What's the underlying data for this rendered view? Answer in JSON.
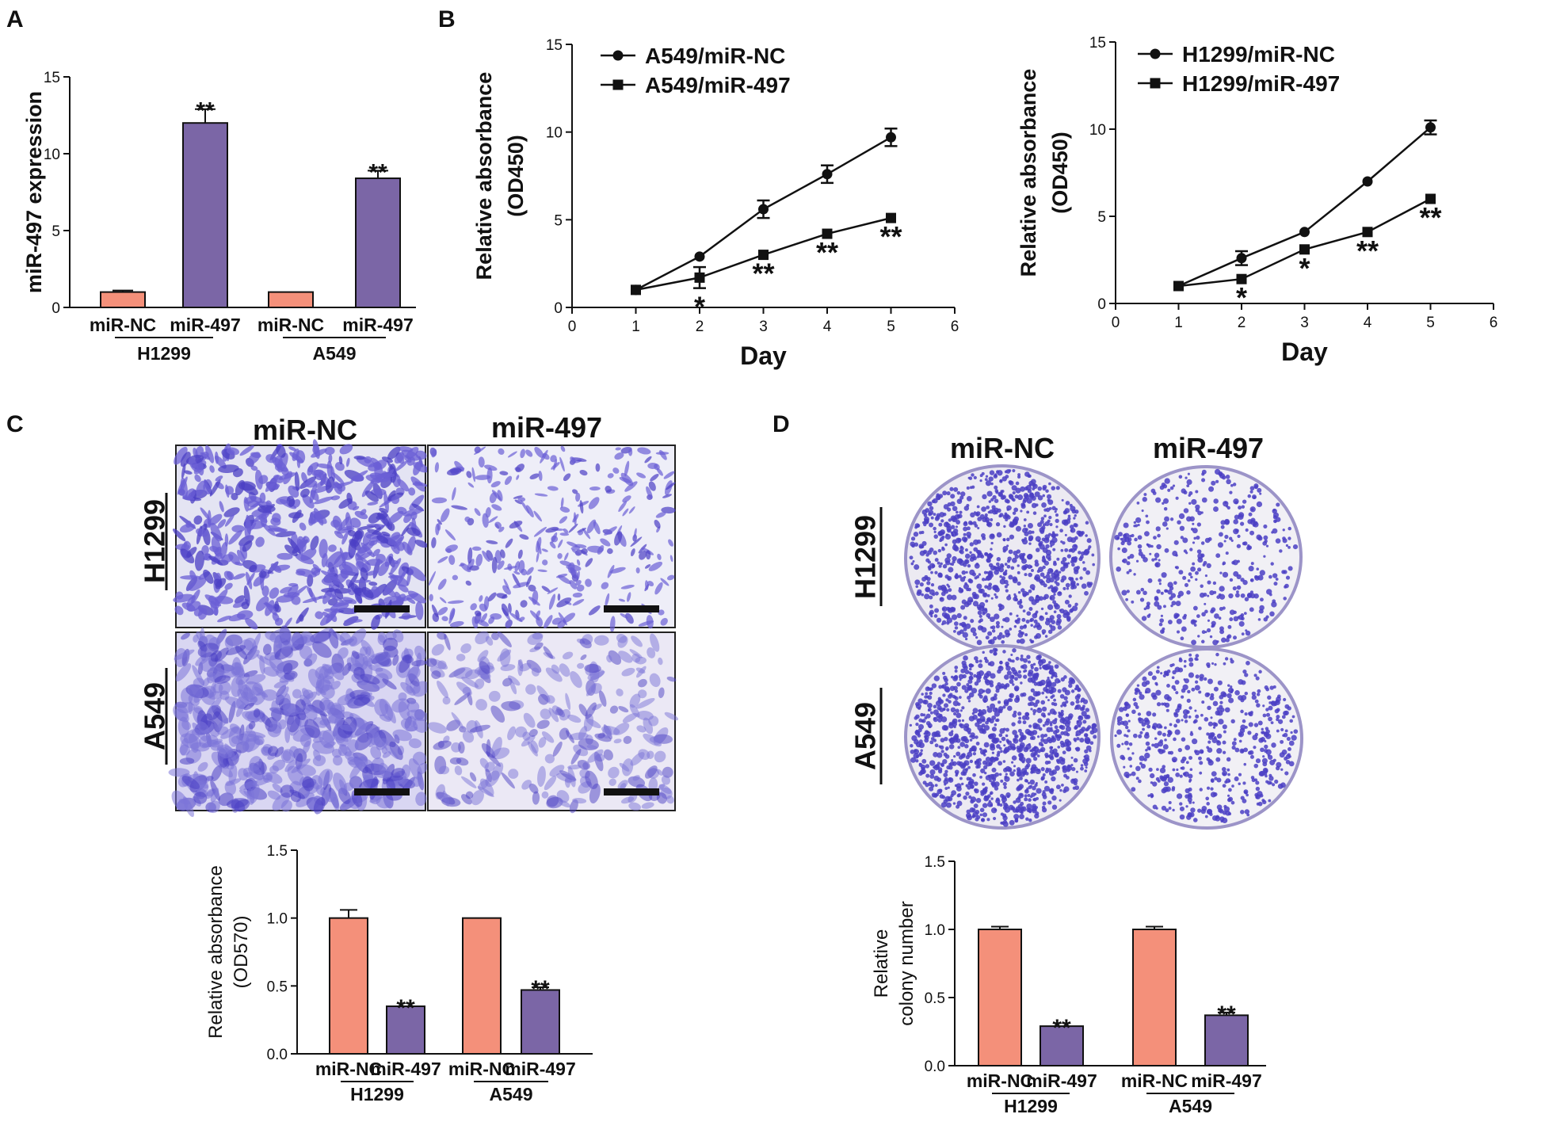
{
  "panels": {
    "a": "A",
    "b": "B",
    "c": "C",
    "d": "D"
  },
  "colors": {
    "nc_bar": "#f4907a",
    "mir_bar": "#7b66a6",
    "stain_dark": "#4b3fc4",
    "stain_mid": "#6b5fd6",
    "stain_light": "#c9c6f0",
    "a549_bg": "#d9d6f2",
    "dish_bg": "#eceaf2",
    "line": "#111111"
  },
  "images": {
    "col_nc": "miR-NC",
    "col_mir": "miR-497",
    "row_h1299": "H1299",
    "row_a549": "A549"
  },
  "chart_data": [
    {
      "id": "A",
      "type": "bar",
      "title": "",
      "ylabel": "miR-497 expression",
      "xlabel": "",
      "ylim": [
        0,
        15
      ],
      "yticks": [
        "0",
        "5",
        "10",
        "15"
      ],
      "categories": [
        "miR-NC",
        "miR-497",
        "miR-NC",
        "miR-497"
      ],
      "groups": [
        "H1299",
        "A549"
      ],
      "values": [
        1.0,
        12.0,
        1.0,
        8.4
      ],
      "errors": [
        0.1,
        0.9,
        0.0,
        0.5
      ],
      "significance": [
        "",
        "**",
        "",
        "**"
      ]
    },
    {
      "id": "B1",
      "type": "line",
      "title": "",
      "xlabel": "Day",
      "ylabel_line1": "Relative absorbance",
      "ylabel_line2": "(OD450)",
      "xlim": [
        0,
        6
      ],
      "ylim": [
        0,
        15
      ],
      "xticks": [
        "0",
        "1",
        "2",
        "3",
        "4",
        "5",
        "6"
      ],
      "yticks": [
        "0",
        "5",
        "10",
        "15"
      ],
      "x": [
        1,
        2,
        3,
        4,
        5
      ],
      "series": [
        {
          "name": "A549/miR-NC",
          "marker": "circle",
          "values": [
            1.0,
            2.9,
            5.6,
            7.6,
            9.7
          ],
          "errors": [
            0,
            0,
            0.5,
            0.5,
            0.5
          ]
        },
        {
          "name": "A549/miR-497",
          "marker": "square",
          "values": [
            1.0,
            1.7,
            3.0,
            4.2,
            5.1
          ],
          "errors": [
            0,
            0.6,
            0,
            0,
            0
          ]
        }
      ],
      "significance": [
        "",
        "*",
        "**",
        "**",
        "**"
      ]
    },
    {
      "id": "B2",
      "type": "line",
      "title": "",
      "xlabel": "Day",
      "ylabel_line1": "Relative absorbance",
      "ylabel_line2": "(OD450)",
      "xlim": [
        0,
        6
      ],
      "ylim": [
        0,
        15
      ],
      "xticks": [
        "0",
        "1",
        "2",
        "3",
        "4",
        "5",
        "6"
      ],
      "yticks": [
        "0",
        "5",
        "10",
        "15"
      ],
      "x": [
        1,
        2,
        3,
        4,
        5
      ],
      "series": [
        {
          "name": "H1299/miR-NC",
          "marker": "circle",
          "values": [
            1.0,
            2.6,
            4.1,
            7.0,
            10.1
          ],
          "errors": [
            0,
            0.4,
            0,
            0,
            0.4
          ]
        },
        {
          "name": "H1299/miR-497",
          "marker": "square",
          "values": [
            1.0,
            1.4,
            3.1,
            4.1,
            6.0
          ],
          "errors": [
            0,
            0,
            0,
            0,
            0
          ]
        }
      ],
      "significance": [
        "",
        "*",
        "*",
        "**",
        "**"
      ]
    },
    {
      "id": "C",
      "type": "bar",
      "title": "",
      "ylabel_line1": "Relative absorbance",
      "ylabel_line2": "(OD570)",
      "xlabel": "",
      "ylim": [
        0,
        1.5
      ],
      "yticks": [
        "0.0",
        "0.5",
        "1.0",
        "1.5"
      ],
      "categories": [
        "miR-NC",
        "miR-497",
        "miR-NC",
        "miR-497"
      ],
      "groups": [
        "H1299",
        "A549"
      ],
      "values": [
        1.0,
        0.35,
        1.0,
        0.47
      ],
      "errors": [
        0.06,
        0.0,
        0.0,
        0.02
      ],
      "significance": [
        "",
        "**",
        "",
        "**"
      ]
    },
    {
      "id": "D",
      "type": "bar",
      "title": "",
      "ylabel_line1": "Relative",
      "ylabel_line2": "colony number",
      "xlabel": "",
      "ylim": [
        0,
        1.5
      ],
      "yticks": [
        "0.0",
        "0.5",
        "1.0",
        "1.5"
      ],
      "categories": [
        "miR-NC",
        "miR-497",
        "miR-NC",
        "miR-497"
      ],
      "groups": [
        "H1299",
        "A549"
      ],
      "values": [
        1.0,
        0.29,
        1.0,
        0.37
      ],
      "errors": [
        0.02,
        0.0,
        0.02,
        0.02
      ],
      "significance": [
        "",
        "**",
        "",
        "**"
      ]
    }
  ]
}
